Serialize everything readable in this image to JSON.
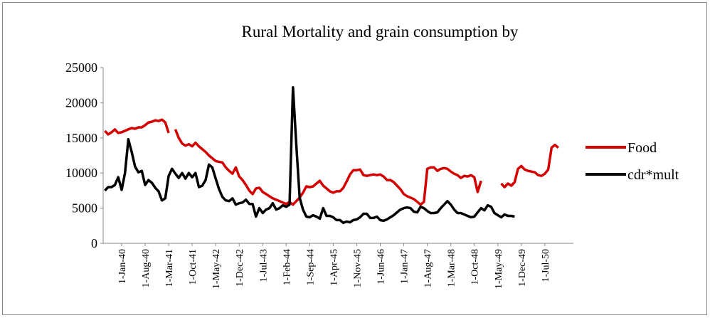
{
  "chart_data": {
    "type": "line",
    "title": "Rural Mortality and grain consumption by",
    "categories": [
      null,
      null,
      null,
      null,
      null,
      "1-Jan-40",
      null,
      null,
      null,
      null,
      null,
      null,
      "1-Aug-40",
      null,
      null,
      null,
      null,
      null,
      null,
      "1-Mar-41",
      null,
      null,
      null,
      null,
      null,
      null,
      "1-Oct-41",
      null,
      null,
      null,
      null,
      null,
      null,
      "1-May-42",
      null,
      null,
      null,
      null,
      null,
      null,
      "1-Dec-42",
      null,
      null,
      null,
      null,
      null,
      null,
      "1-Jul-43",
      null,
      null,
      null,
      null,
      null,
      null,
      "1-Feb-44",
      null,
      null,
      null,
      null,
      null,
      null,
      "1-Sep-44",
      null,
      null,
      null,
      null,
      null,
      null,
      "1-Apr-45",
      null,
      null,
      null,
      null,
      null,
      null,
      "1-Nov-45",
      null,
      null,
      null,
      null,
      null,
      null,
      "1-Jun-46",
      null,
      null,
      null,
      null,
      null,
      null,
      "1-Jan-47",
      null,
      null,
      null,
      null,
      null,
      null,
      "1-Aug-47",
      null,
      null,
      null,
      null,
      null,
      null,
      "1-Mar-48",
      null,
      null,
      null,
      null,
      null,
      null,
      "1-Oct-48",
      null,
      null,
      null,
      null,
      null,
      null,
      "1-May-49",
      null,
      null,
      null,
      null,
      null,
      null,
      "1-Dec-49",
      null,
      null,
      null,
      null,
      null,
      null,
      "1-Jul-50",
      null,
      null,
      null,
      null,
      null,
      null,
      null,
      null
    ],
    "series": [
      {
        "name": "Food",
        "color": "#d40000",
        "values": [
          16000,
          15500,
          15800,
          16200,
          15700,
          15800,
          16000,
          16200,
          16400,
          16300,
          16500,
          16500,
          16800,
          17200,
          17300,
          17500,
          17400,
          17600,
          17200,
          15700,
          null,
          16200,
          15000,
          14200,
          13900,
          14100,
          13800,
          14300,
          13800,
          13400,
          13000,
          12500,
          12100,
          11700,
          11600,
          11500,
          10800,
          10300,
          9900,
          10800,
          9500,
          9000,
          8300,
          7500,
          7000,
          7800,
          7900,
          7300,
          7000,
          6700,
          6400,
          6200,
          6000,
          5800,
          5600,
          5900,
          5500,
          6000,
          6500,
          7200,
          8100,
          8000,
          8100,
          8500,
          8900,
          8200,
          7800,
          7400,
          7200,
          7400,
          7400,
          7900,
          8800,
          9800,
          10400,
          10400,
          10500,
          9700,
          9600,
          9700,
          9800,
          9700,
          9800,
          9500,
          9000,
          9000,
          8700,
          8200,
          7700,
          7000,
          6700,
          6500,
          6300,
          5900,
          5500,
          5900,
          10600,
          10800,
          10800,
          10300,
          10600,
          10700,
          10600,
          10200,
          9900,
          9700,
          9300,
          9600,
          9500,
          9700,
          9400,
          7300,
          8900,
          null,
          null,
          null,
          null,
          null,
          8500,
          8000,
          8500,
          8200,
          8700,
          10600,
          11000,
          10500,
          10300,
          10200,
          10100,
          9700,
          9600,
          9900,
          10500,
          13600,
          14000,
          13600,
          null,
          null,
          null,
          null
        ]
      },
      {
        "name": "cdr*mult",
        "color": "#000000",
        "values": [
          7500,
          8000,
          8000,
          8300,
          9400,
          7600,
          10000,
          14800,
          13000,
          10900,
          10100,
          10300,
          8300,
          9000,
          8600,
          7900,
          7400,
          6100,
          6400,
          9600,
          10600,
          9900,
          9300,
          10000,
          9200,
          10000,
          9400,
          10000,
          8000,
          8200,
          9000,
          11200,
          10800,
          9200,
          7700,
          6600,
          6100,
          6000,
          6400,
          5500,
          5700,
          5800,
          6200,
          5600,
          5600,
          3800,
          5000,
          4300,
          4800,
          5000,
          5700,
          4800,
          5000,
          5400,
          5200,
          5500,
          22200,
          14000,
          6500,
          4800,
          3800,
          3700,
          4000,
          3800,
          3500,
          5000,
          3900,
          3900,
          3700,
          3300,
          3300,
          2900,
          3100,
          3000,
          3300,
          3400,
          3700,
          4200,
          4200,
          3600,
          3600,
          3800,
          3300,
          3200,
          3400,
          3700,
          4000,
          4400,
          4800,
          5000,
          5100,
          5000,
          4500,
          4400,
          5200,
          5000,
          4600,
          4300,
          4300,
          4400,
          5000,
          5500,
          6000,
          5500,
          4800,
          4300,
          4300,
          4100,
          3900,
          3700,
          3800,
          4400,
          5000,
          4700,
          5400,
          5200,
          4300,
          4000,
          3700,
          4100,
          3900,
          3900,
          3800,
          null,
          null,
          null,
          null,
          null,
          null,
          null,
          null,
          null,
          null,
          null,
          null,
          null,
          null,
          null,
          null,
          null
        ]
      }
    ],
    "ylim": [
      0,
      25000
    ],
    "yticks": [
      0,
      5000,
      10000,
      15000,
      20000,
      25000
    ],
    "grid": false,
    "legend": "right"
  }
}
